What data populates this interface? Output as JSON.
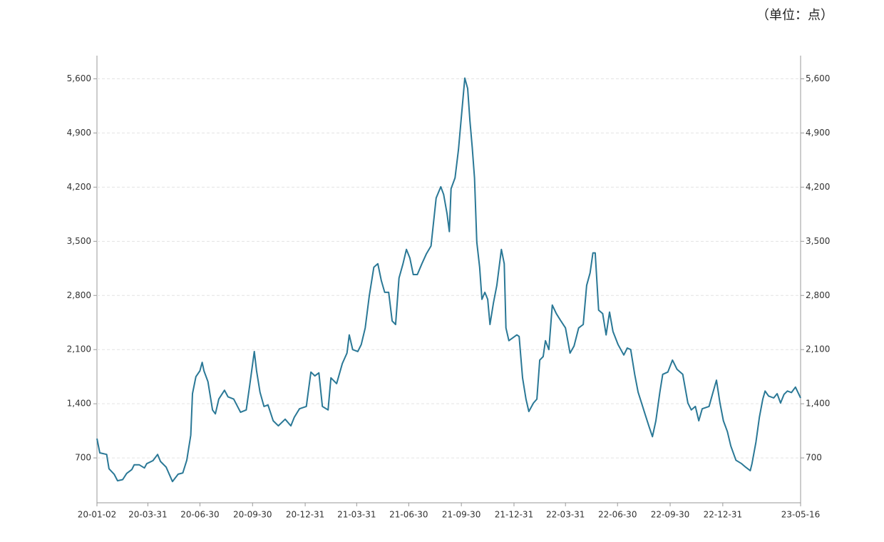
{
  "chart_data": {
    "type": "line",
    "unit_label": "（单位：点）",
    "xlim": [
      "20-01-02",
      "23-05-16"
    ],
    "xticks": [
      "20-01-02",
      "20-03-31",
      "20-06-30",
      "20-09-30",
      "20-12-31",
      "21-03-31",
      "21-06-30",
      "21-09-30",
      "21-12-31",
      "22-03-31",
      "22-06-30",
      "22-09-30",
      "22-12-31",
      "23-05-16"
    ],
    "ylim": [
      120,
      5900
    ],
    "yticks": [
      700,
      {
        "value": 1400,
        "label": "1,400"
      },
      {
        "value": 2100,
        "label": "2,100"
      },
      {
        "value": 2800,
        "label": "2,800"
      },
      {
        "value": 3500,
        "label": "3,500"
      },
      {
        "value": 4200,
        "label": "4,200"
      },
      {
        "value": 4900,
        "label": "4,900"
      },
      {
        "value": 5600,
        "label": "5,600"
      }
    ],
    "grid": true,
    "x": [
      "20-01-02",
      "20-01-07",
      "20-01-19",
      "20-01-23",
      "20-02-01",
      "20-02-07",
      "20-02-16",
      "20-02-23",
      "20-03-03",
      "20-03-07",
      "20-03-16",
      "20-03-25",
      "20-03-29",
      "20-04-09",
      "20-04-17",
      "20-04-22",
      "20-05-02",
      "20-05-13",
      "20-05-23",
      "20-05-31",
      "20-06-07",
      "20-06-14",
      "20-06-17",
      "20-06-23",
      "20-06-30",
      "20-07-04",
      "20-07-07",
      "20-07-14",
      "20-07-22",
      "20-07-27",
      "20-08-02",
      "20-08-12",
      "20-08-18",
      "20-08-28",
      "20-09-09",
      "20-09-19",
      "20-09-25",
      "20-10-03",
      "20-10-07",
      "20-10-13",
      "20-10-20",
      "20-10-27",
      "20-11-05",
      "20-11-14",
      "20-11-26",
      "20-12-06",
      "20-12-12",
      "20-12-21",
      "21-01-02",
      "21-01-10",
      "21-01-17",
      "21-01-24",
      "21-01-30",
      "21-02-09",
      "21-02-14",
      "21-02-24",
      "21-03-06",
      "21-03-14",
      "21-03-18",
      "21-03-24",
      "21-04-02",
      "21-04-08",
      "21-04-15",
      "21-04-22",
      "21-04-30",
      "21-05-07",
      "21-05-13",
      "21-05-19",
      "21-05-26",
      "21-06-01",
      "21-06-07",
      "21-06-13",
      "21-06-20",
      "21-06-26",
      "21-07-02",
      "21-07-08",
      "21-07-15",
      "21-07-23",
      "21-07-31",
      "21-08-08",
      "21-08-17",
      "21-08-25",
      "21-08-30",
      "21-09-05",
      "21-09-09",
      "21-09-12",
      "21-09-19",
      "21-09-25",
      "21-10-01",
      "21-10-06",
      "21-10-11",
      "21-10-15",
      "21-10-19",
      "21-10-23",
      "21-10-27",
      "21-11-01",
      "21-11-05",
      "21-11-10",
      "21-11-15",
      "21-11-19",
      "21-11-25",
      "21-12-01",
      "21-12-09",
      "21-12-14",
      "21-12-17",
      "21-12-22",
      "22-01-05",
      "22-01-09",
      "22-01-15",
      "22-01-21",
      "22-01-26",
      "22-02-03",
      "22-02-09",
      "22-02-14",
      "22-02-20",
      "22-02-24",
      "22-03-02",
      "22-03-08",
      "22-03-15",
      "22-03-23",
      "22-03-31",
      "22-04-08",
      "22-04-15",
      "22-04-23",
      "22-05-01",
      "22-05-07",
      "22-05-13",
      "22-05-18",
      "22-05-22",
      "22-05-28",
      "22-06-04",
      "22-06-10",
      "22-06-16",
      "22-06-22",
      "22-07-01",
      "22-07-11",
      "22-07-17",
      "22-07-23",
      "22-07-30",
      "22-08-05",
      "22-08-11",
      "22-08-17",
      "22-08-24",
      "22-08-30",
      "22-09-05",
      "22-09-12",
      "22-09-17",
      "22-09-26",
      "22-10-04",
      "22-10-12",
      "22-10-22",
      "22-10-31",
      "22-11-06",
      "22-11-13",
      "22-11-19",
      "22-11-25",
      "22-12-07",
      "22-12-14",
      "22-12-20",
      "22-12-26",
      "23-01-01",
      "23-01-08",
      "23-01-14",
      "23-01-23",
      "23-02-02",
      "23-02-09",
      "23-02-17",
      "23-02-20",
      "23-02-27",
      "23-03-05",
      "23-03-11",
      "23-03-15",
      "23-03-21",
      "23-03-30",
      "23-04-05",
      "23-04-11",
      "23-04-17",
      "23-04-23",
      "23-04-30",
      "23-05-07",
      "23-05-16"
    ],
    "series": [
      {
        "color": "#2a7896",
        "values": [
          950,
          765,
          745,
          560,
          490,
          405,
          420,
          500,
          550,
          610,
          610,
          570,
          625,
          665,
          745,
          655,
          580,
          395,
          490,
          505,
          670,
          995,
          1530,
          1750,
          1825,
          1935,
          1825,
          1685,
          1320,
          1270,
          1460,
          1575,
          1490,
          1460,
          1290,
          1320,
          1640,
          2075,
          1825,
          1550,
          1365,
          1385,
          1180,
          1115,
          1200,
          1115,
          1225,
          1335,
          1365,
          1810,
          1760,
          1800,
          1365,
          1320,
          1735,
          1660,
          1920,
          2055,
          2290,
          2100,
          2075,
          2165,
          2380,
          2795,
          3165,
          3210,
          2995,
          2840,
          2840,
          2470,
          2425,
          3025,
          3210,
          3395,
          3285,
          3070,
          3070,
          3210,
          3340,
          3440,
          4060,
          4205,
          4105,
          3855,
          3625,
          4180,
          4320,
          4685,
          5195,
          5610,
          5475,
          5055,
          4715,
          4320,
          3490,
          3165,
          2750,
          2840,
          2750,
          2425,
          2700,
          2930,
          3395,
          3210,
          2380,
          2215,
          2290,
          2270,
          1735,
          1460,
          1300,
          1410,
          1460,
          1965,
          2010,
          2215,
          2100,
          2675,
          2565,
          2470,
          2380,
          2055,
          2145,
          2380,
          2425,
          2930,
          3090,
          3350,
          3350,
          2610,
          2565,
          2290,
          2585,
          2335,
          2165,
          2030,
          2120,
          2100,
          1780,
          1550,
          1410,
          1270,
          1105,
          975,
          1180,
          1550,
          1780,
          1810,
          1965,
          1845,
          1780,
          1410,
          1320,
          1365,
          1180,
          1335,
          1365,
          1550,
          1705,
          1410,
          1180,
          1040,
          855,
          670,
          625,
          580,
          535,
          625,
          905,
          1225,
          1460,
          1565,
          1500,
          1475,
          1530,
          1410,
          1520,
          1565,
          1545,
          1615,
          1475
        ]
      }
    ]
  }
}
